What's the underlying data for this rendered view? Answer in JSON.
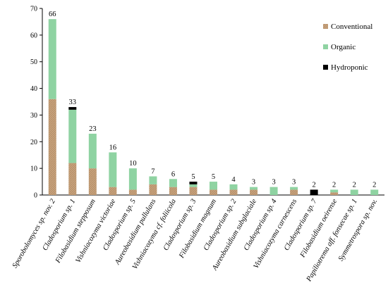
{
  "chart_data": {
    "type": "bar",
    "stacked": true,
    "categories": [
      "Sporobolomyces sp. nov. 2",
      "Cladosporium sp. 1",
      "Filobasidium stepposum",
      "Vishniacozyma victoriae",
      "Cladosporium sp. 5",
      "Aureobasidium pullulans",
      "Vishniacozyma cf. foliicola",
      "Cladosporium sp. 3",
      "Filobasidium magnum",
      "Cladosporium sp. 2",
      "Aureobasidium subglaciale",
      "Cladosporium sp. 4",
      "Vishniacozyma carnescens",
      "Cladosporium sp. 7",
      "Filobasidium oeirense",
      "Papiliotrema aff. fonsecae sp. 1",
      "Symmetrospora sp. nov."
    ],
    "series": [
      {
        "name": "Conventional",
        "values": [
          36,
          12,
          10,
          3,
          2,
          4,
          3,
          3,
          2,
          2,
          2,
          0,
          2,
          0,
          1,
          0,
          0
        ]
      },
      {
        "name": "Organic",
        "values": [
          30,
          20,
          13,
          13,
          8,
          3,
          3,
          1,
          3,
          2,
          1,
          3,
          1,
          0,
          1,
          2,
          2
        ]
      },
      {
        "name": "Hydroponic",
        "values": [
          0,
          1,
          0,
          0,
          0,
          0,
          0,
          1,
          0,
          0,
          0,
          0,
          0,
          2,
          0,
          0,
          0
        ]
      }
    ],
    "totals": [
      "66",
      "33",
      "23",
      "16",
      "10",
      "7",
      "6",
      "5",
      "5",
      "4",
      "3",
      "3",
      "3",
      "2",
      "2",
      "2",
      "2"
    ],
    "yticks": [
      "0",
      "10",
      "20",
      "30",
      "40",
      "50",
      "60",
      "70"
    ],
    "ylim": [
      0,
      70
    ],
    "legend_position": "top-right",
    "colors": {
      "Conventional": "#c9a47e",
      "Organic": "#8fd3a2",
      "Hydroponic": "#000000"
    }
  }
}
